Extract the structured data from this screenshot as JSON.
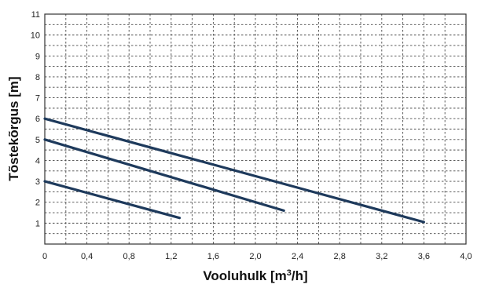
{
  "chart_data": {
    "type": "line",
    "xlabel": "Vooluhulk",
    "xlabel_unit_open": "[m",
    "xlabel_unit_sup": "3",
    "xlabel_unit_close": "/h]",
    "ylabel": "Tõstekõrgus [m]",
    "xlim": [
      0,
      4.0
    ],
    "ylim": [
      0,
      11
    ],
    "x_ticks": [
      0,
      0.4,
      0.8,
      1.2,
      1.6,
      2.0,
      2.4,
      2.8,
      3.2,
      3.6,
      4.0
    ],
    "x_tick_labels": [
      "0",
      "0,4",
      "0,8",
      "1,2",
      "1,6",
      "2,0",
      "2,4",
      "2,8",
      "3,2",
      "3,6",
      "4,0"
    ],
    "y_ticks": [
      1,
      2,
      3,
      4,
      5,
      6,
      7,
      8,
      9,
      10,
      11
    ],
    "y_tick_labels": [
      "1",
      "2",
      "3",
      "4",
      "5",
      "6",
      "7",
      "8",
      "9",
      "10",
      "11"
    ],
    "x_minor_grid": [
      0.2,
      0.6,
      1.0,
      1.4,
      1.8,
      2.2,
      2.6,
      3.0,
      3.4,
      3.8
    ],
    "y_minor_grid": [
      0.5,
      1.5,
      2.5,
      3.5,
      4.5,
      5.5,
      6.5,
      7.5,
      8.5,
      9.5,
      10.5
    ],
    "grid": true,
    "line_color": "#1e3a5c",
    "series": [
      {
        "x": [
          0,
          1.28
        ],
        "y": [
          3.0,
          1.25
        ]
      },
      {
        "x": [
          0,
          2.27
        ],
        "y": [
          5.0,
          1.6
        ]
      },
      {
        "x": [
          0,
          3.6
        ],
        "y": [
          6.0,
          1.05
        ]
      }
    ]
  }
}
